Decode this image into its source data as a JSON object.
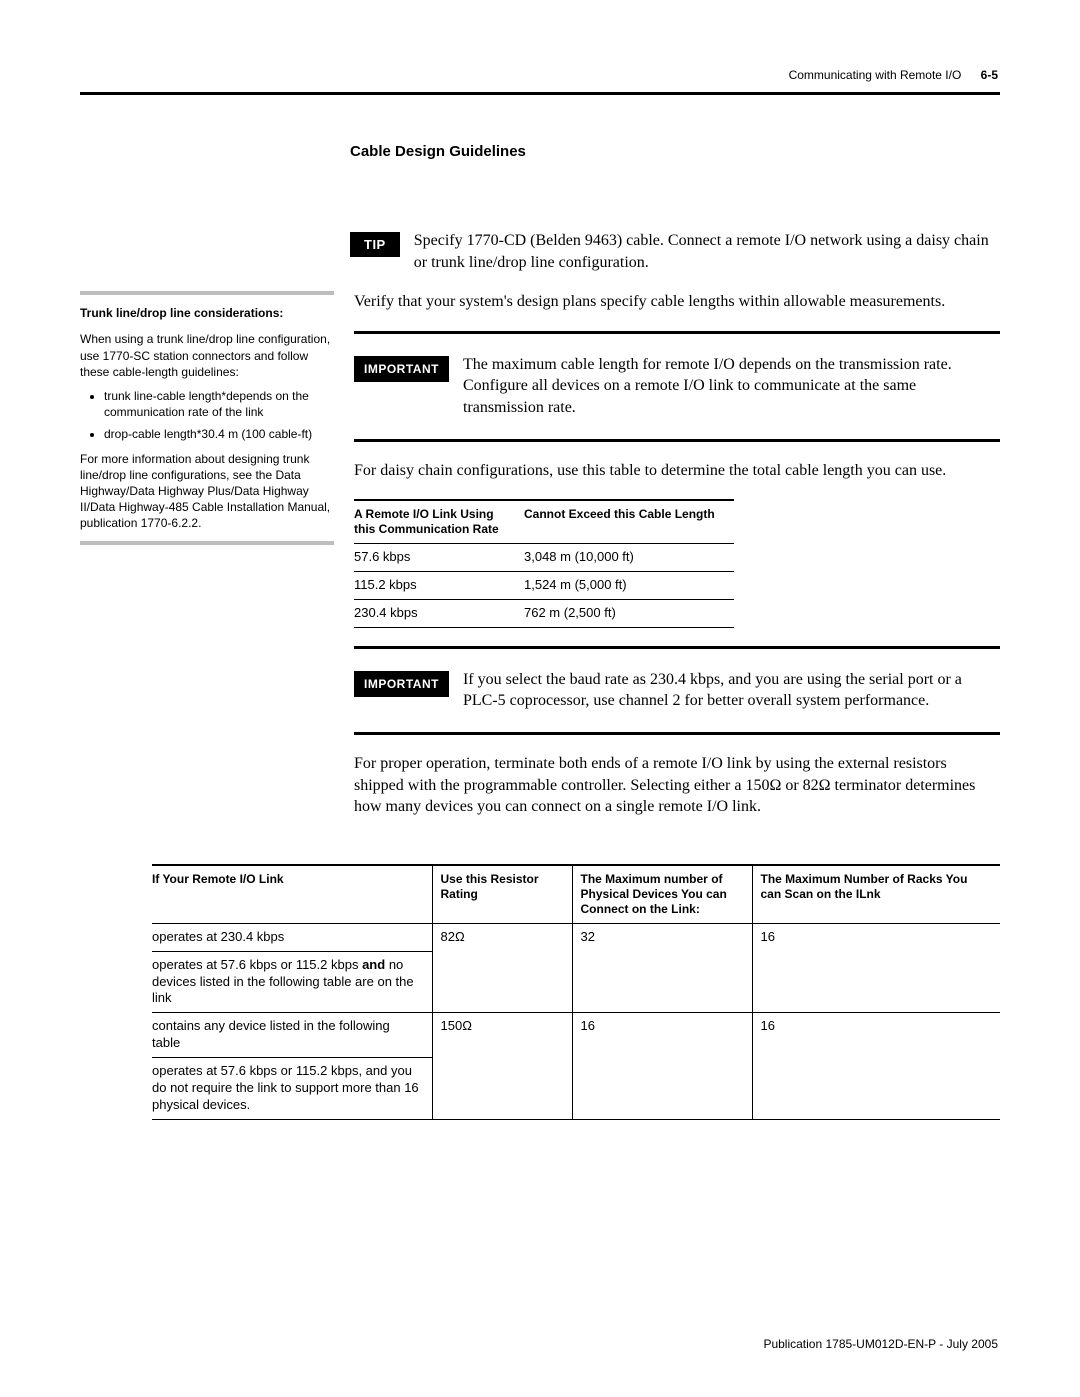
{
  "header": {
    "running_title": "Communicating with Remote I/O",
    "page_num": "6-5"
  },
  "section_heading": "Cable Design Guidelines",
  "tip": {
    "label": "TIP",
    "text": "Specify 1770-CD (Belden 9463) cable. Connect a remote I/O network using a daisy chain or trunk line/drop line configuration."
  },
  "sidebar": {
    "title": "Trunk line/drop line considerations:",
    "intro": "When using a trunk line/drop line configuration, use 1770-SC station connectors and follow these cable-length guidelines:",
    "bullets": [
      "trunk line-cable length*depends on the communication rate of the link",
      "drop-cable length*30.4 m (100 cable-ft)"
    ],
    "outro": "For more information about designing trunk line/drop line configurations, see the Data Highway/Data Highway Plus/Data Highway II/Data Highway-485 Cable Installation Manual, publication 1770-6.2.2."
  },
  "verify_p": "Verify that your system's design plans specify cable lengths within allowable measurements.",
  "important1": {
    "label": "IMPORTANT",
    "text": "The maximum cable length for remote I/O depends on the transmission rate. Configure all devices on a remote I/O link to communicate at the same transmission rate."
  },
  "daisy_p": "For daisy chain configurations, use this table to determine the total cable length you can use.",
  "table1": {
    "col1_header": "A Remote I/O Link Using this Communication Rate",
    "col2_header": "Cannot Exceed this Cable Length",
    "rows": [
      {
        "rate": "57.6 kbps",
        "len": "3,048 m (10,000 ft)"
      },
      {
        "rate": "115.2 kbps",
        "len": "1,524 m (5,000 ft)"
      },
      {
        "rate": "230.4 kbps",
        "len": "762 m (2,500 ft)"
      }
    ]
  },
  "important2": {
    "label": "IMPORTANT",
    "text": "If you select the baud rate as 230.4 kbps, and you are using the serial port or a PLC-5 coprocessor, use channel 2 for better overall system performance."
  },
  "terminate_p": "For proper operation, terminate both ends of a remote I/O link by using the external resistors shipped with the programmable controller. Selecting either a 150Ω or 82Ω terminator determines how many devices you can connect on a single remote I/O link.",
  "table2": {
    "headers": {
      "c1": "If Your Remote I/O Link",
      "c2": "Use this Resistor Rating",
      "c3": "The Maximum number of Physical Devices You can Connect on the Link:",
      "c4": "The Maximum Number of Racks You can Scan on the ILnk"
    },
    "group1": {
      "resistor": "82Ω",
      "devices": "32",
      "racks": "16",
      "r1": "operates at 230.4 kbps",
      "r2a": "operates at 57.6 kbps or 115.2 kbps ",
      "r2b": "and",
      "r2c": " no devices listed in the following table are on the link"
    },
    "group2": {
      "resistor": "150Ω",
      "devices": "16",
      "racks": "16",
      "r1": "contains any device listed in the following table",
      "r2": "operates at 57.6 kbps or 115.2 kbps, and you do not require the link to support more than 16 physical devices."
    }
  },
  "footer": "Publication 1785-UM012D-EN-P - July 2005"
}
